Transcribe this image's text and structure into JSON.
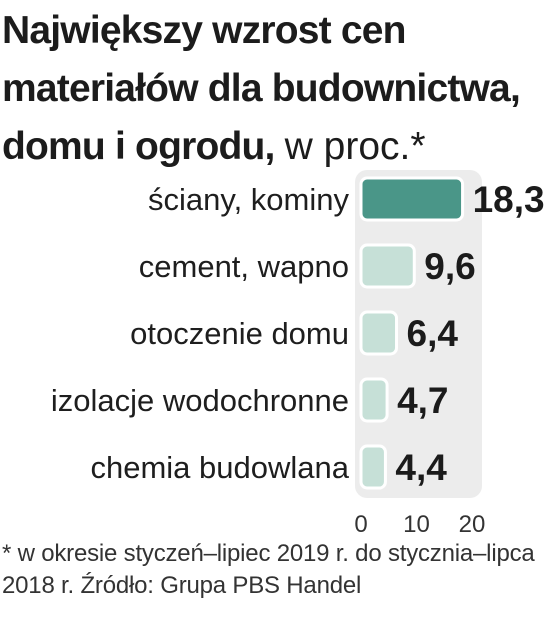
{
  "title": "Największy wzrost cen materiałów dla budownictwa, domu i ogrodu,",
  "title_unit": "w proc.*",
  "footnote": "* w okresie styczeń–lipiec 2019 r. do stycznia–lipca 2018 r. Źródło: Grupa PBS Handel",
  "colors": {
    "highlight_bar": "#4a9688",
    "bar": "#c6e0d7",
    "plot_background": "#ececec",
    "text": "#1b1b1b"
  },
  "chart_data": {
    "type": "bar",
    "orientation": "horizontal",
    "categories": [
      "ściany, kominy",
      "cement, wapno",
      "otoczenie domu",
      "izolacje wodochronne",
      "chemia budowlana"
    ],
    "values": [
      18.3,
      9.6,
      6.4,
      4.7,
      4.4
    ],
    "value_labels": [
      "18,3",
      "9,6",
      "6,4",
      "4,7",
      "4,4"
    ],
    "xlim": [
      0,
      20
    ],
    "xticks": [
      0,
      10,
      20
    ],
    "xtick_labels": [
      "0",
      "10",
      "20"
    ],
    "highlighted_category": "ściany, kominy",
    "grid": false,
    "legend": "none"
  }
}
